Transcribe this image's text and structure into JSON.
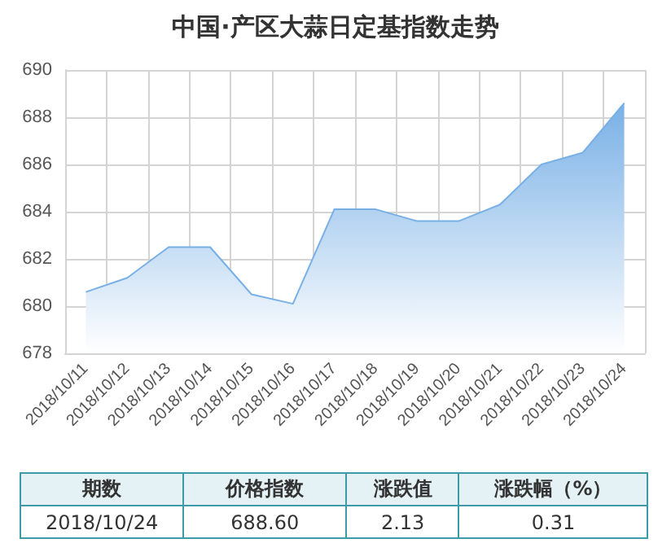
{
  "chart_data": {
    "type": "area",
    "title": "中国·产区大蒜日定基指数走势",
    "categories": [
      "2018/10/11",
      "2018/10/12",
      "2018/10/13",
      "2018/10/14",
      "2018/10/15",
      "2018/10/16",
      "2018/10/17",
      "2018/10/18",
      "2018/10/19",
      "2018/10/20",
      "2018/10/21",
      "2018/10/22",
      "2018/10/23",
      "2018/10/24"
    ],
    "series": [
      {
        "color": "#78b0e6",
        "values": [
          680.6,
          681.2,
          682.5,
          682.5,
          680.5,
          680.1,
          684.1,
          684.1,
          683.6,
          683.6,
          684.3,
          686.0,
          686.5,
          688.6
        ]
      }
    ],
    "ylim": [
      678,
      690
    ],
    "yticks": [
      678,
      680,
      682,
      684,
      686,
      688,
      690
    ],
    "grid": true,
    "marker": "none",
    "annotations": [
      "期数",
      "价格指数",
      "涨跌值",
      "涨跌幅（%）",
      "2018/10/24",
      "688.60",
      "2.13",
      "0.31"
    ]
  }
}
